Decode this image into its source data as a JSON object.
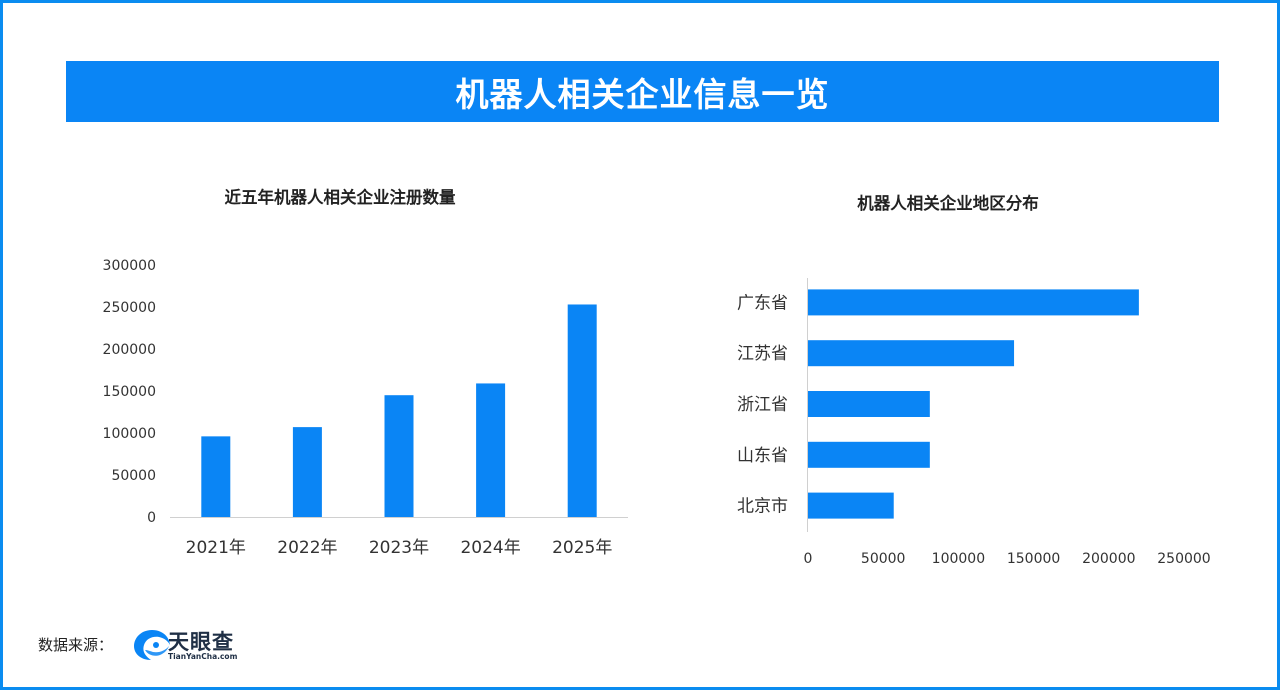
{
  "header": {
    "title": "机器人相关企业信息一览"
  },
  "left_chart": {
    "title": "近五年机器人相关企业注册数量"
  },
  "right_chart": {
    "title": "机器人相关企业地区分布"
  },
  "footer": {
    "source_label": "数据来源：",
    "logo_name": "天眼查",
    "logo_url": "TianYanCha.com"
  },
  "colors": {
    "bar": "#0a85f5",
    "banner": "#0a85f5",
    "frame": "#0a8cf0"
  },
  "chart_data": [
    {
      "type": "bar",
      "title": "近五年机器人相关企业注册数量",
      "categories": [
        "2021年",
        "2022年",
        "2023年",
        "2024年",
        "2025年"
      ],
      "values": [
        96000,
        107000,
        145000,
        159000,
        253000
      ],
      "yticks": [
        "0",
        "50000",
        "100000",
        "150000",
        "200000",
        "250000",
        "300000"
      ],
      "ylim": [
        0,
        300000
      ],
      "xlabel": "",
      "ylabel": "",
      "grid": false
    },
    {
      "type": "bar",
      "orientation": "horizontal",
      "title": "机器人相关企业地区分布",
      "categories": [
        "广东省",
        "江苏省",
        "浙江省",
        "山东省",
        "北京市"
      ],
      "values": [
        220000,
        137000,
        81000,
        81000,
        57000
      ],
      "xticks": [
        "0",
        "50000",
        "100000",
        "150000",
        "200000",
        "250000"
      ],
      "xlim": [
        0,
        250000
      ],
      "xlabel": "",
      "ylabel": "",
      "grid": false
    }
  ]
}
